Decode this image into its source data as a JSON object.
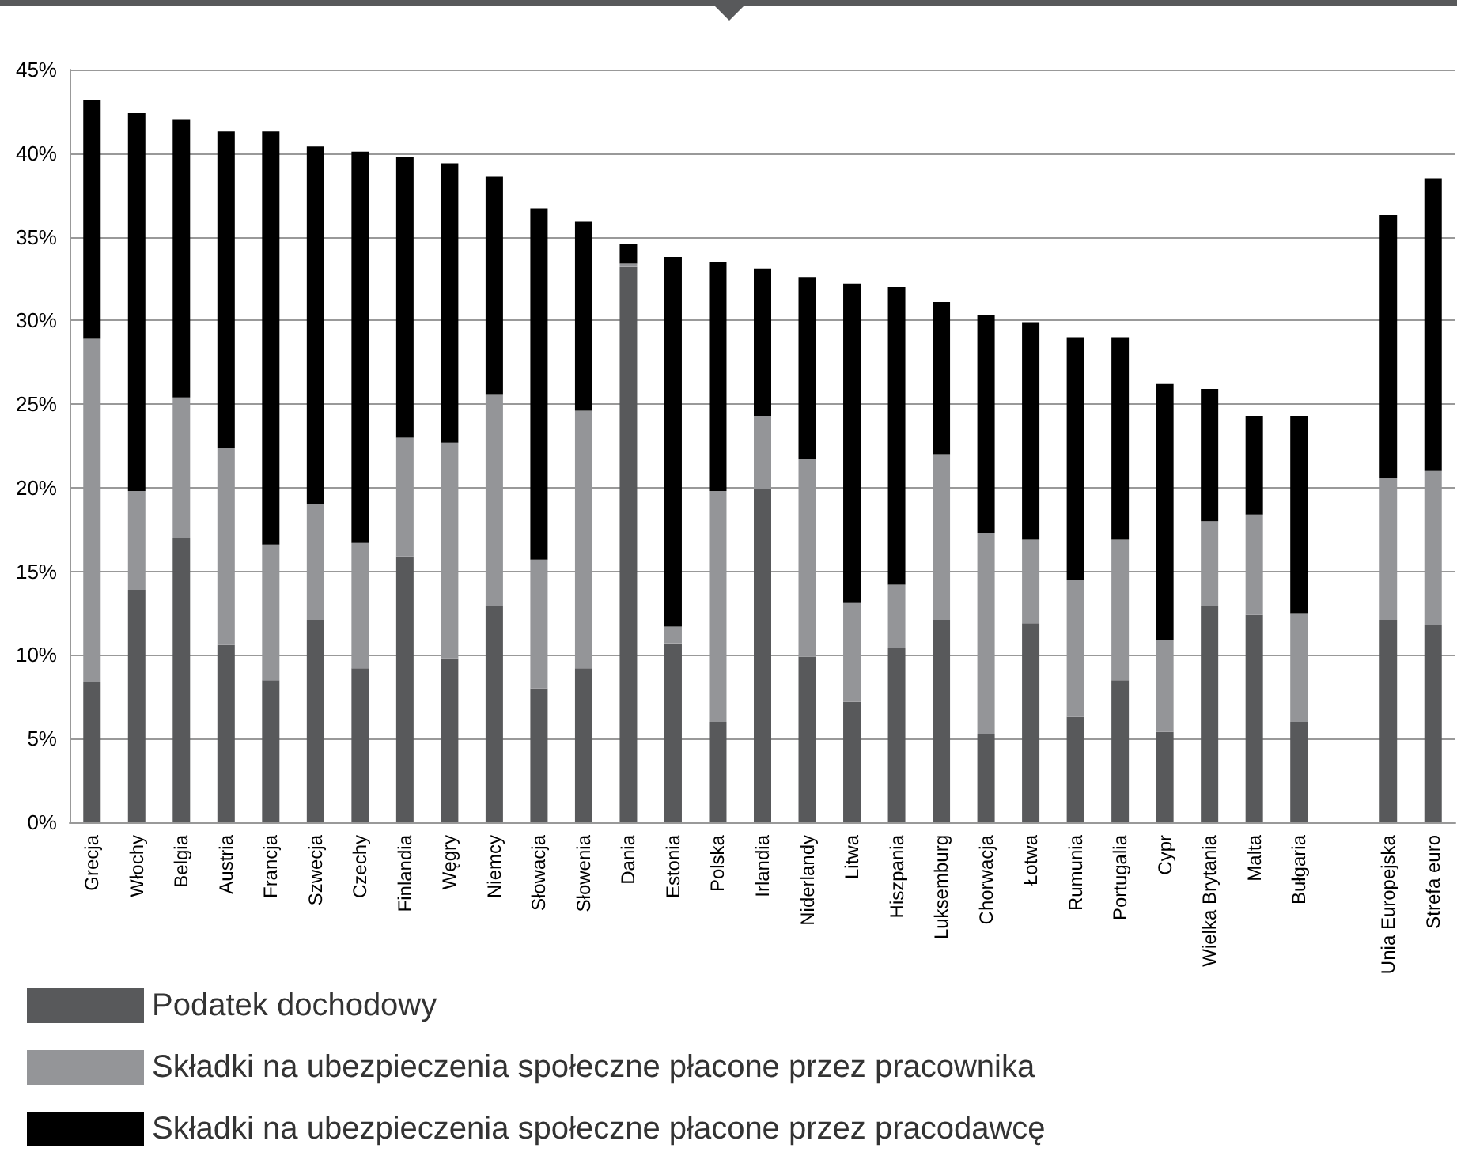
{
  "chart_data": {
    "type": "bar",
    "stacked": true,
    "categories": [
      "Grecja",
      "Włochy",
      "Belgia",
      "Austria",
      "Francja",
      "Szwecja",
      "Czechy",
      "Finlandia",
      "Węgry",
      "Niemcy",
      "Słowacja",
      "Słowenia",
      "Dania",
      "Estonia",
      "Polska",
      "Irlandia",
      "Niderlandy",
      "Litwa",
      "Hiszpania",
      "Luksemburg",
      "Chorwacja",
      "Łotwa",
      "Rumunia",
      "Portugalia",
      "Cypr",
      "Wielka Brytania",
      "Malta",
      "Bułgaria",
      null,
      "Unia Europejska",
      "Strefa euro"
    ],
    "series": [
      {
        "name": "Podatek dochodowy",
        "color": "#58595b",
        "values": [
          8.4,
          13.9,
          17.0,
          10.6,
          8.5,
          12.1,
          9.2,
          15.9,
          9.8,
          12.9,
          8.0,
          9.2,
          33.2,
          10.7,
          6.0,
          19.9,
          9.9,
          7.2,
          10.4,
          12.1,
          5.3,
          11.9,
          6.3,
          8.5,
          5.4,
          12.9,
          12.4,
          6.0,
          null,
          12.1,
          11.8
        ]
      },
      {
        "name": "Składki na ubezpieczenia społeczne płacone przez pracownika",
        "color": "#949598",
        "values": [
          20.5,
          5.9,
          8.4,
          11.8,
          8.1,
          6.9,
          7.5,
          7.1,
          12.9,
          12.7,
          7.7,
          15.4,
          0.2,
          1.0,
          13.8,
          4.4,
          11.8,
          5.9,
          3.8,
          9.9,
          12.0,
          5.0,
          8.2,
          8.4,
          5.5,
          5.1,
          6.0,
          6.5,
          null,
          8.5,
          9.2
        ]
      },
      {
        "name": "Składki na ubezpieczenia społeczne płacone przez pracodawcę",
        "color": "#000000",
        "values": [
          14.3,
          22.6,
          16.6,
          18.9,
          24.7,
          21.4,
          23.4,
          16.8,
          16.7,
          13.0,
          21.0,
          11.3,
          1.2,
          22.1,
          13.7,
          8.8,
          10.9,
          19.1,
          17.8,
          9.1,
          13.0,
          13.0,
          14.5,
          12.1,
          15.3,
          7.9,
          5.9,
          11.8,
          null,
          15.7,
          17.5
        ]
      }
    ],
    "ylim": [
      0,
      45
    ],
    "yticks": [
      {
        "value": 0,
        "label": "0%"
      },
      {
        "value": 5,
        "label": "5%"
      },
      {
        "value": 10,
        "label": "10%"
      },
      {
        "value": 15,
        "label": "15%"
      },
      {
        "value": 20,
        "label": "20%"
      },
      {
        "value": 25,
        "label": "25%"
      },
      {
        "value": 30,
        "label": "30%"
      },
      {
        "value": 35,
        "label": "35%"
      },
      {
        "value": 40,
        "label": "40%"
      },
      {
        "value": 45,
        "label": "45%"
      }
    ],
    "grid": "y",
    "legend": "bottom left"
  }
}
